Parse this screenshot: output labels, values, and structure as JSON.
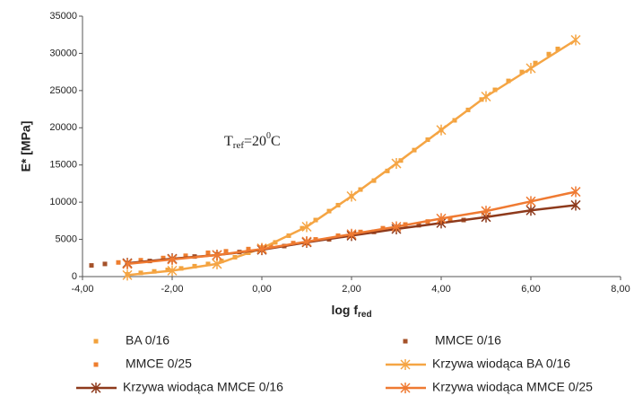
{
  "chart_data": {
    "type": "scatter-line",
    "y_label": "E* [MPa]",
    "x_label": {
      "main": "log f",
      "sub": "red"
    },
    "annotation": {
      "base": "T",
      "sub": "ref",
      "mid": "=20",
      "sup": "0",
      "end": "C"
    },
    "xlim": [
      -4,
      8
    ],
    "xticks": [
      {
        "value": -4,
        "label": "-4,00"
      },
      {
        "value": -2,
        "label": "-2,00"
      },
      {
        "value": 0,
        "label": "0,00"
      },
      {
        "value": 2,
        "label": "2,00"
      },
      {
        "value": 4,
        "label": "4,00"
      },
      {
        "value": 6,
        "label": "6,00"
      },
      {
        "value": 8,
        "label": "8,00"
      }
    ],
    "ylim": [
      0,
      35000
    ],
    "yticks": [
      0,
      5000,
      10000,
      15000,
      20000,
      25000,
      30000,
      35000
    ],
    "grid": false,
    "series": [
      {
        "name": "BA 0/16",
        "color": "#f2a23c",
        "marker": "square",
        "line": false,
        "x": [
          -3,
          -2.7,
          -2.4,
          -2.1,
          -1.8,
          -1.5,
          -1.2,
          -0.9,
          -0.6,
          -0.3,
          0,
          0.3,
          0.6,
          0.9,
          1.2,
          1.5,
          1.7,
          2,
          2.2,
          2.5,
          2.8,
          3.1,
          3.4,
          3.7,
          4,
          4.3,
          4.6,
          4.9,
          5.2,
          5.5,
          5.8,
          6.1,
          6.4,
          6.6
        ],
        "values": [
          300,
          500,
          700,
          900,
          1100,
          1400,
          1700,
          2100,
          2600,
          3200,
          3900,
          4600,
          5500,
          6500,
          7600,
          8800,
          9600,
          10800,
          11700,
          12900,
          14200,
          15600,
          17000,
          18400,
          19700,
          21000,
          22400,
          23800,
          25100,
          26300,
          27500,
          28700,
          29900,
          30600
        ]
      },
      {
        "name": "MMCE 0/16",
        "color": "#a5522a",
        "marker": "square",
        "line": false,
        "x": [
          -3.8,
          -3.5,
          -3,
          -2.5,
          -2,
          -1.5,
          -1,
          -0.5,
          0,
          0.5,
          1,
          1.5,
          2,
          2.5,
          3,
          3.5,
          4,
          4.5
        ],
        "values": [
          1500,
          1700,
          1800,
          2100,
          2300,
          2700,
          3000,
          3300,
          3600,
          4100,
          4500,
          5000,
          5500,
          6000,
          6500,
          6900,
          7300,
          7600
        ]
      },
      {
        "name": "MMCE 0/25",
        "color": "#ee7d2e",
        "marker": "square",
        "line": false,
        "x": [
          -3.2,
          -2.7,
          -2.2,
          -1.7,
          -1.2,
          -0.8,
          -0.3,
          0.2,
          0.7,
          1.2,
          1.7,
          2.2,
          2.7,
          3.2,
          3.7,
          4.2
        ],
        "values": [
          1900,
          2200,
          2500,
          2800,
          3200,
          3400,
          3700,
          4100,
          4500,
          5000,
          5500,
          6000,
          6500,
          7000,
          7400,
          7700
        ]
      },
      {
        "name": "Krzywa wiodąca BA 0/16",
        "color": "#f5a544",
        "marker": "star",
        "line": true,
        "x": [
          -3,
          -2,
          -1,
          0,
          1,
          2,
          3,
          4,
          5,
          6,
          7
        ],
        "values": [
          200,
          800,
          1700,
          3800,
          6700,
          10800,
          15200,
          19700,
          24200,
          28000,
          31800
        ]
      },
      {
        "name": "Krzywa wiodąca MMCE 0/16",
        "color": "#8e3a1c",
        "marker": "star",
        "line": true,
        "x": [
          -3,
          -2,
          -1,
          0,
          1,
          2,
          3,
          4,
          5,
          6,
          7
        ],
        "values": [
          1800,
          2400,
          2900,
          3600,
          4600,
          5500,
          6400,
          7200,
          8000,
          8900,
          9600
        ]
      },
      {
        "name": "Krzywa wiodąca MMCE 0/25",
        "color": "#ef7a32",
        "marker": "star",
        "line": true,
        "x": [
          -3,
          -2,
          -1,
          0,
          1,
          2,
          3,
          4,
          5,
          6,
          7
        ],
        "values": [
          1700,
          2300,
          2900,
          3700,
          4700,
          5700,
          6700,
          7800,
          8800,
          10100,
          11400
        ]
      }
    ]
  }
}
